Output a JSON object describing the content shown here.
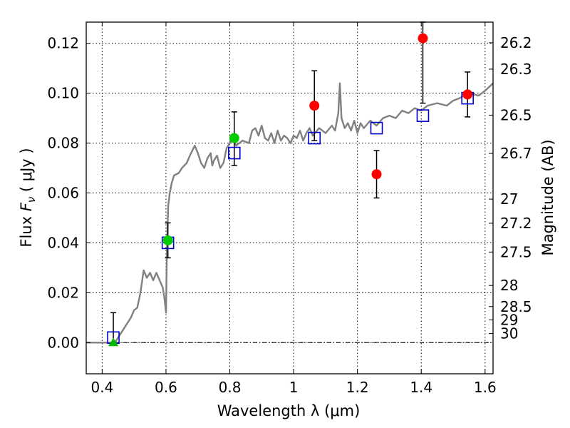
{
  "chart_data": {
    "type": "scatter",
    "xlabel": "Wavelength  λ (μm)",
    "ylabel_left": "Flux  F_ν  ( μJy )",
    "ylabel_right": "Magnitude (AB)",
    "xlim": [
      0.35,
      1.625
    ],
    "ylim": [
      -0.0125,
      0.1285
    ],
    "grid": true,
    "x_ticks": [
      {
        "value": 0.4,
        "label": "0.4"
      },
      {
        "value": 0.6,
        "label": "0.6"
      },
      {
        "value": 0.8,
        "label": "0.8"
      },
      {
        "value": 1.0,
        "label": "1"
      },
      {
        "value": 1.2,
        "label": "1.2"
      },
      {
        "value": 1.4,
        "label": "1.4"
      },
      {
        "value": 1.6,
        "label": "1.6"
      }
    ],
    "y_ticks": [
      {
        "value": 0.0,
        "label": "0.00"
      },
      {
        "value": 0.02,
        "label": "0.02"
      },
      {
        "value": 0.04,
        "label": "0.04"
      },
      {
        "value": 0.06,
        "label": "0.06"
      },
      {
        "value": 0.08,
        "label": "0.08"
      },
      {
        "value": 0.1,
        "label": "0.10"
      },
      {
        "value": 0.12,
        "label": "0.12"
      }
    ],
    "magnitude_ticks": [
      {
        "value": 26.2,
        "label": "26.2"
      },
      {
        "value": 26.3,
        "label": "26.3"
      },
      {
        "value": 26.5,
        "label": "26.5"
      },
      {
        "value": 26.7,
        "label": "26.7"
      },
      {
        "value": 27.0,
        "label": "27"
      },
      {
        "value": 27.2,
        "label": "27.2"
      },
      {
        "value": 27.5,
        "label": "27.5"
      },
      {
        "value": 28.0,
        "label": "28"
      },
      {
        "value": 28.5,
        "label": "28.5"
      },
      {
        "value": 29.0,
        "label": "29"
      },
      {
        "value": 30.0,
        "label": "30"
      }
    ],
    "template_spectrum": {
      "color": "#808080",
      "x": [
        0.35,
        0.44,
        0.455,
        0.47,
        0.49,
        0.5,
        0.51,
        0.52,
        0.53,
        0.54,
        0.55,
        0.56,
        0.57,
        0.58,
        0.59,
        0.595,
        0.6,
        0.603,
        0.607,
        0.612,
        0.618,
        0.625,
        0.64,
        0.65,
        0.665,
        0.675,
        0.69,
        0.7,
        0.71,
        0.72,
        0.73,
        0.74,
        0.745,
        0.75,
        0.76,
        0.77,
        0.78,
        0.79,
        0.8,
        0.81,
        0.82,
        0.84,
        0.86,
        0.87,
        0.88,
        0.89,
        0.9,
        0.91,
        0.92,
        0.93,
        0.94,
        0.95,
        0.96,
        0.97,
        0.98,
        0.99,
        1.0,
        1.01,
        1.02,
        1.03,
        1.04,
        1.05,
        1.06,
        1.08,
        1.1,
        1.12,
        1.13,
        1.14,
        1.145,
        1.15,
        1.16,
        1.17,
        1.18,
        1.19,
        1.2,
        1.21,
        1.22,
        1.24,
        1.26,
        1.28,
        1.3,
        1.32,
        1.34,
        1.36,
        1.38,
        1.4,
        1.42,
        1.45,
        1.48,
        1.5,
        1.52,
        1.55,
        1.58,
        1.6,
        1.625
      ],
      "y": [
        0.0,
        0.0,
        0.003,
        0.006,
        0.01,
        0.013,
        0.014,
        0.02,
        0.029,
        0.026,
        0.028,
        0.025,
        0.028,
        0.025,
        0.022,
        0.018,
        0.012,
        0.038,
        0.055,
        0.06,
        0.064,
        0.067,
        0.068,
        0.07,
        0.072,
        0.075,
        0.079,
        0.076,
        0.072,
        0.07,
        0.074,
        0.076,
        0.071,
        0.073,
        0.075,
        0.07,
        0.072,
        0.078,
        0.08,
        0.082,
        0.079,
        0.081,
        0.08,
        0.085,
        0.086,
        0.083,
        0.087,
        0.082,
        0.081,
        0.084,
        0.08,
        0.085,
        0.081,
        0.083,
        0.082,
        0.08,
        0.083,
        0.082,
        0.085,
        0.081,
        0.084,
        0.086,
        0.083,
        0.086,
        0.084,
        0.087,
        0.085,
        0.092,
        0.104,
        0.09,
        0.086,
        0.088,
        0.085,
        0.089,
        0.084,
        0.088,
        0.086,
        0.089,
        0.087,
        0.09,
        0.091,
        0.09,
        0.093,
        0.092,
        0.094,
        0.093,
        0.095,
        0.096,
        0.095,
        0.097,
        0.098,
        0.1,
        0.099,
        0.101,
        0.104
      ]
    },
    "series": [
      {
        "marker": "open-square",
        "color": "#0000cc",
        "points": [
          {
            "x": 0.435,
            "y": 0.002
          },
          {
            "x": 0.606,
            "y": 0.04
          },
          {
            "x": 0.814,
            "y": 0.076
          },
          {
            "x": 1.065,
            "y": 0.082
          },
          {
            "x": 1.26,
            "y": 0.086
          },
          {
            "x": 1.405,
            "y": 0.091
          },
          {
            "x": 1.545,
            "y": 0.098
          }
        ]
      },
      {
        "marker": "circle",
        "color": "#00cc00",
        "points": [
          {
            "x": 0.606,
            "y": 0.041,
            "yerr_low": 0.007,
            "yerr_high": 0.007
          },
          {
            "x": 0.814,
            "y": 0.082,
            "yerr_low": 0.011,
            "yerr_high": 0.0105
          }
        ]
      },
      {
        "marker": "circle",
        "color": "#ff0000",
        "points": [
          {
            "x": 1.065,
            "y": 0.095,
            "yerr_low": 0.014,
            "yerr_high": 0.014
          },
          {
            "x": 1.26,
            "y": 0.0675,
            "yerr_low": 0.0095,
            "yerr_high": 0.0095
          },
          {
            "x": 1.405,
            "y": 0.122,
            "yerr_low": 0.026,
            "yerr_high": 0.0065
          },
          {
            "x": 1.545,
            "y": 0.0995,
            "yerr_low": 0.009,
            "yerr_high": 0.009
          }
        ]
      },
      {
        "marker": "triangle",
        "color": "#00bb00",
        "points": [
          {
            "x": 0.435,
            "y": 0.0,
            "yerr_low": 0.0,
            "yerr_high": 0.012
          }
        ]
      }
    ]
  }
}
